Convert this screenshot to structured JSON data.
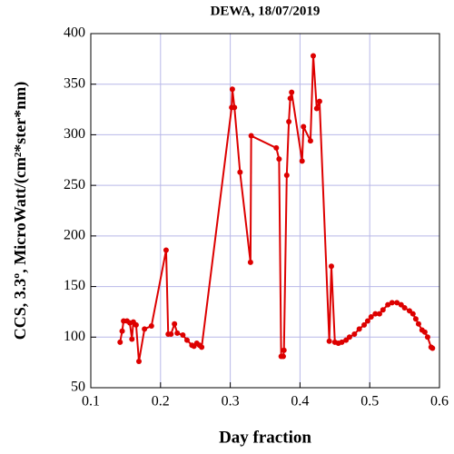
{
  "chart_data": {
    "type": "line",
    "title": "DEWA, 18/07/2019",
    "x_label": "Day fraction",
    "y_label": "CCS, 3.3º, MicroWatt/(cm²*ster*nm)",
    "x": [
      0.142,
      0.145,
      0.147,
      0.152,
      0.156,
      0.159,
      0.161,
      0.165,
      0.169,
      0.177,
      0.187,
      0.208,
      0.211,
      0.215,
      0.22,
      0.224,
      0.232,
      0.238,
      0.245,
      0.248,
      0.252,
      0.256,
      0.259,
      0.302,
      0.303,
      0.306,
      0.314,
      0.329,
      0.33,
      0.366,
      0.37,
      0.373,
      0.376,
      0.377,
      0.381,
      0.384,
      0.386,
      0.388,
      0.403,
      0.405,
      0.415,
      0.419,
      0.424,
      0.428,
      0.442,
      0.445,
      0.45,
      0.455,
      0.46,
      0.466,
      0.471,
      0.478,
      0.485,
      0.492,
      0.497,
      0.502,
      0.508,
      0.514,
      0.519,
      0.526,
      0.532,
      0.539,
      0.545,
      0.55,
      0.557,
      0.562,
      0.566,
      0.57,
      0.575,
      0.579,
      0.583,
      0.588,
      0.59
    ],
    "values": [
      95,
      106,
      116,
      116,
      114,
      98,
      115,
      112,
      76,
      108,
      111,
      186,
      103,
      103,
      113,
      104,
      102,
      97,
      92,
      91,
      94,
      92,
      90,
      327,
      345,
      327,
      263,
      174,
      299,
      287,
      276,
      81,
      81,
      87,
      260,
      313,
      336,
      342,
      274,
      308,
      294,
      378,
      326,
      333,
      96,
      170,
      95,
      94,
      95,
      97,
      100,
      103,
      108,
      112,
      116,
      120,
      123,
      123,
      127,
      132,
      134,
      134,
      132,
      129,
      126,
      123,
      118,
      113,
      107,
      105,
      100,
      90,
      89
    ],
    "color": "#dd0000",
    "xlim": [
      0.1,
      0.6
    ],
    "xticks": [
      0.1,
      0.2,
      0.3,
      0.4,
      0.5,
      0.6
    ],
    "ylim": [
      50,
      400
    ],
    "yticks": [
      50,
      100,
      150,
      200,
      250,
      300,
      350,
      400
    ],
    "grid": true
  }
}
